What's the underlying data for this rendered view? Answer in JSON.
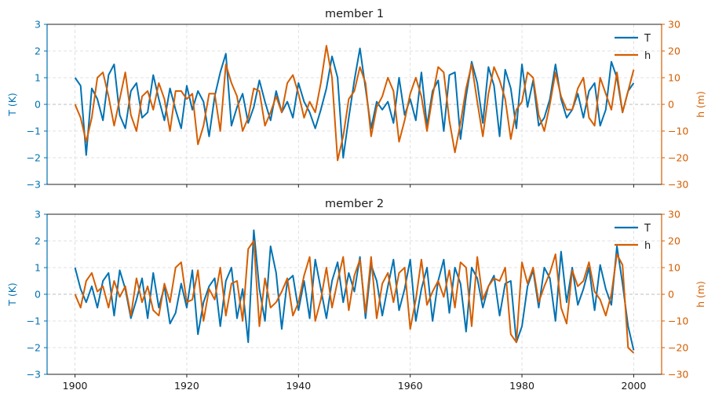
{
  "colors": {
    "T": "#0072B2",
    "h": "#D55E00"
  },
  "chart_data": [
    {
      "type": "line",
      "title": "member 1",
      "x_range": [
        1900,
        2000
      ],
      "xlim": [
        1895,
        2005
      ],
      "x_ticks": [
        1900,
        1920,
        1940,
        1960,
        1980,
        2000
      ],
      "show_x_tick_labels": false,
      "y_left": {
        "label": "T (K)",
        "lim": [
          -3,
          3
        ],
        "ticks": [
          -3,
          -2,
          -1,
          0,
          1,
          2,
          3
        ]
      },
      "y_right": {
        "label": "h (m)",
        "lim": [
          -30,
          30
        ],
        "ticks": [
          -30,
          -20,
          -10,
          0,
          10,
          20,
          30
        ]
      },
      "grid": true,
      "legend": "top-right",
      "series": [
        {
          "name": "T",
          "axis": "left",
          "color": "#0072B2",
          "x_start": 1900,
          "x_step": 1,
          "values": [
            1.0,
            0.7,
            -1.9,
            0.6,
            0.2,
            -0.6,
            1.1,
            1.5,
            -0.4,
            -0.9,
            0.5,
            0.8,
            -0.5,
            -0.3,
            1.1,
            0.2,
            -0.6,
            0.6,
            -0.2,
            -0.9,
            0.7,
            -0.2,
            0.5,
            0.1,
            -1.2,
            0.3,
            1.2,
            1.9,
            -0.8,
            -0.1,
            0.4,
            -0.7,
            -0.1,
            0.9,
            0.1,
            -0.6,
            0.5,
            -0.3,
            0.1,
            -0.5,
            0.8,
            0.1,
            -0.3,
            -0.9,
            -0.2,
            0.6,
            1.8,
            1.0,
            -2.0,
            -0.5,
            0.9,
            2.1,
            0.6,
            -0.9,
            0.1,
            -0.2,
            0.1,
            -0.7,
            1.0,
            -0.4,
            0.2,
            -0.6,
            1.2,
            -0.8,
            0.5,
            0.9,
            -1.0,
            1.1,
            1.2,
            -1.3,
            0.3,
            1.6,
            0.8,
            -0.7,
            1.4,
            0.7,
            -1.2,
            1.3,
            0.6,
            -0.9,
            1.5,
            -0.1,
            0.9,
            -0.8,
            -0.5,
            0.2,
            1.5,
            0.2,
            -0.5,
            -0.2,
            0.4,
            -0.5,
            0.5,
            0.8,
            -0.8,
            -0.2,
            1.6,
            1.0,
            -0.3,
            0.5,
            0.8
          ]
        },
        {
          "name": "h",
          "axis": "right",
          "color": "#D55E00",
          "x_start": 1900,
          "x_step": 1,
          "values": [
            0,
            -5,
            -14,
            -5,
            10,
            12,
            3,
            -8,
            2,
            12,
            -4,
            -10,
            3,
            5,
            -2,
            8,
            2,
            -10,
            5,
            5,
            2,
            4,
            -15,
            -8,
            4,
            4,
            -10,
            15,
            8,
            3,
            -10,
            -5,
            6,
            5,
            -8,
            -3,
            3,
            -3,
            8,
            11,
            4,
            -5,
            1,
            -3,
            8,
            22,
            10,
            -21,
            -12,
            2,
            5,
            14,
            8,
            -12,
            -1,
            3,
            10,
            5,
            -14,
            -6,
            4,
            10,
            3,
            -10,
            3,
            14,
            12,
            -6,
            -18,
            -7,
            6,
            15,
            1,
            -12,
            4,
            14,
            9,
            2,
            -13,
            -2,
            1,
            12,
            10,
            -4,
            -10,
            0,
            12,
            3,
            -2,
            -2,
            6,
            10,
            -5,
            -8,
            10,
            4,
            -2,
            12,
            -3,
            5,
            13
          ]
        }
      ]
    },
    {
      "type": "line",
      "title": "member 2",
      "x_range": [
        1900,
        2000
      ],
      "xlim": [
        1895,
        2005
      ],
      "x_ticks": [
        1900,
        1920,
        1940,
        1960,
        1980,
        2000
      ],
      "show_x_tick_labels": true,
      "y_left": {
        "label": "T (K)",
        "lim": [
          -3,
          3
        ],
        "ticks": [
          -3,
          -2,
          -1,
          0,
          1,
          2,
          3
        ]
      },
      "y_right": {
        "label": "h (m)",
        "lim": [
          -30,
          30
        ],
        "ticks": [
          -30,
          -20,
          -10,
          0,
          10,
          20,
          30
        ]
      },
      "grid": true,
      "legend": "top-right",
      "series": [
        {
          "name": "T",
          "axis": "left",
          "color": "#0072B2",
          "x_start": 1900,
          "x_step": 1,
          "values": [
            1.0,
            0.2,
            -0.3,
            0.3,
            -0.5,
            0.5,
            0.8,
            -0.8,
            0.9,
            0.2,
            -0.9,
            -0.2,
            0.6,
            -0.9,
            0.8,
            -0.5,
            0.3,
            -1.1,
            -0.7,
            0.4,
            -0.5,
            0.9,
            -1.5,
            -0.3,
            0.3,
            0.6,
            -1.2,
            0.5,
            1.0,
            -0.9,
            0.2,
            -1.8,
            2.4,
            0.2,
            -1.0,
            1.8,
            0.8,
            -1.3,
            0.5,
            0.7,
            -0.6,
            0.5,
            -0.9,
            1.3,
            0.2,
            -0.9,
            0.5,
            1.2,
            -0.3,
            0.8,
            0.1,
            1.4,
            -0.9,
            1.1,
            0.5,
            -0.8,
            0.3,
            1.3,
            -0.6,
            0.2,
            1.3,
            -1.0,
            0.2,
            1.0,
            -1.0,
            0.5,
            1.3,
            -0.7,
            1.0,
            0.4,
            -1.4,
            1.0,
            0.6,
            -0.5,
            0.3,
            0.7,
            -0.8,
            0.4,
            0.5,
            -1.8,
            -1.2,
            0.3,
            0.9,
            -0.5,
            1.0,
            0.6,
            -1.0,
            1.6,
            -0.3,
            1.0,
            -0.4,
            0.2,
            1.0,
            -0.6,
            1.1,
            0.2,
            -0.4,
            1.8,
            0.4,
            -1.2,
            -2.1
          ]
        },
        {
          "name": "h",
          "axis": "right",
          "color": "#D55E00",
          "x_start": 1900,
          "x_step": 1,
          "values": [
            0,
            -5,
            5,
            8,
            1,
            3,
            -5,
            5,
            -1,
            3,
            -8,
            6,
            -3,
            3,
            -6,
            -8,
            4,
            -3,
            10,
            12,
            -3,
            -2,
            9,
            -10,
            2,
            -2,
            10,
            -8,
            4,
            5,
            -10,
            17,
            20,
            -12,
            6,
            -5,
            -3,
            1,
            6,
            -8,
            -3,
            7,
            14,
            -10,
            -2,
            10,
            -5,
            5,
            14,
            -6,
            7,
            13,
            -7,
            14,
            -9,
            4,
            8,
            -3,
            8,
            10,
            -13,
            -2,
            13,
            -4,
            1,
            5,
            -1,
            9,
            -5,
            12,
            10,
            -12,
            14,
            -2,
            3,
            6,
            5,
            10,
            -15,
            -18,
            12,
            4,
            10,
            -3,
            3,
            8,
            15,
            -5,
            -11,
            9,
            3,
            5,
            12,
            1,
            -2,
            -8,
            0,
            15,
            11,
            -20,
            -22
          ]
        }
      ]
    }
  ]
}
